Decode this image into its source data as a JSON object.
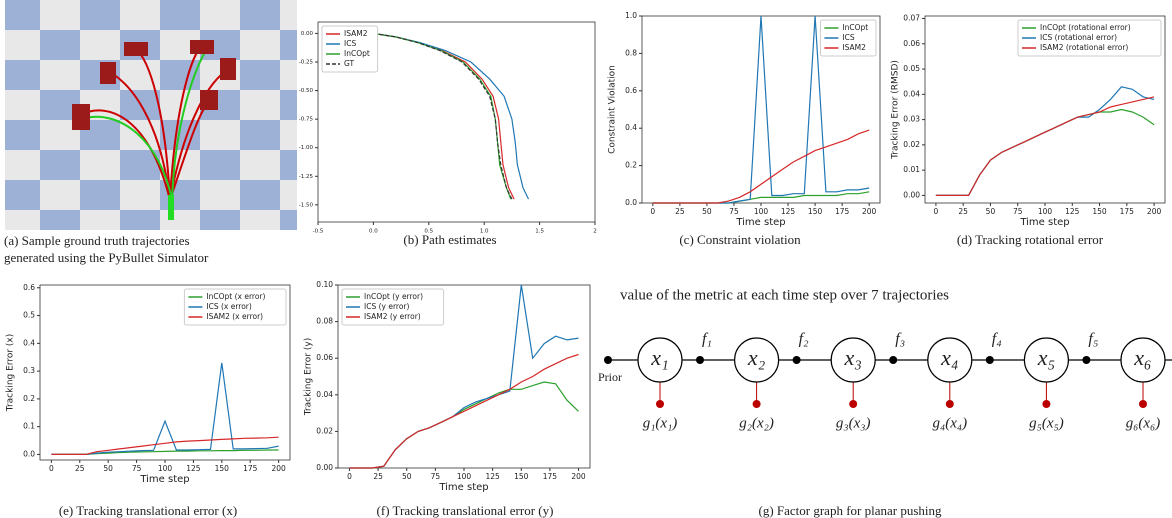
{
  "panel_a": {
    "caption": [
      "(a) Sample ground truth trajectories",
      "generated using the PyBullet Simulator"
    ]
  },
  "chart_data": [
    {
      "type": "line",
      "caption": "(b) Path estimates",
      "legend": "upper left",
      "xlim": [
        -0.5,
        2
      ],
      "xticks": [
        -0.5,
        {
          "value": 0,
          "label": "0.0"
        },
        0.5,
        {
          "value": 1,
          "label": "1.0"
        },
        1.5,
        2
      ],
      "ylim": [
        -1.65,
        0.1
      ],
      "yticks": [
        {
          "value": 0,
          "label": "0.00"
        },
        -0.25,
        {
          "value": -0.5,
          "label": "-0.50"
        },
        -0.75,
        {
          "value": -1,
          "label": "-1.00"
        },
        -1.25,
        {
          "value": -1.5,
          "label": "-1.50"
        }
      ],
      "series": [
        {
          "name": "ISAM2",
          "color": "#d62728",
          "x": [
            0,
            0.2,
            0.41,
            0.62,
            0.83,
            0.98,
            1.08,
            1.13,
            1.15,
            1.17,
            1.22,
            1.27
          ],
          "values": [
            0,
            -0.03,
            -0.08,
            -0.15,
            -0.25,
            -0.4,
            -0.55,
            -0.75,
            -0.95,
            -1.15,
            -1.35,
            -1.45
          ]
        },
        {
          "name": "ICS",
          "color": "#1f77b4",
          "x": [
            0,
            0.2,
            0.42,
            0.65,
            0.88,
            1.05,
            1.18,
            1.25,
            1.28,
            1.3,
            1.35,
            1.4
          ],
          "values": [
            0,
            -0.03,
            -0.08,
            -0.15,
            -0.25,
            -0.4,
            -0.55,
            -0.75,
            -0.95,
            -1.15,
            -1.35,
            -1.45
          ]
        },
        {
          "name": "InCOpt",
          "color": "#2ca02c",
          "x": [
            0,
            0.2,
            0.4,
            0.61,
            0.81,
            0.96,
            1.06,
            1.1,
            1.12,
            1.14,
            1.2,
            1.24
          ],
          "values": [
            0,
            -0.03,
            -0.08,
            -0.15,
            -0.25,
            -0.4,
            -0.55,
            -0.75,
            -0.95,
            -1.15,
            -1.35,
            -1.45
          ]
        },
        {
          "name": "GT",
          "color": "#333333",
          "style": "dashed",
          "x": [
            0,
            0.2,
            0.4,
            0.6,
            0.8,
            0.95,
            1.05,
            1.1,
            1.12,
            1.15,
            1.2,
            1.25
          ],
          "values": [
            0,
            -0.03,
            -0.08,
            -0.15,
            -0.25,
            -0.4,
            -0.55,
            -0.75,
            -0.95,
            -1.15,
            -1.35,
            -1.45
          ]
        }
      ]
    },
    {
      "type": "line",
      "caption": "(c) Constraint violation",
      "xlabel": "Time step",
      "ylabel": "Constraint Violation",
      "legend": "upper right",
      "xlim": [
        -10,
        210
      ],
      "xticks": [
        0,
        25,
        50,
        75,
        100,
        125,
        150,
        175,
        200
      ],
      "ylim": [
        0,
        1
      ],
      "yticks": [
        {
          "value": 0,
          "label": "0.0"
        },
        0.2,
        0.4,
        0.6,
        0.8,
        {
          "value": 1,
          "label": "1.0"
        }
      ],
      "x": [
        0,
        10,
        20,
        30,
        40,
        50,
        60,
        70,
        80,
        90,
        100,
        110,
        120,
        130,
        140,
        150,
        160,
        170,
        180,
        190,
        200
      ],
      "series": [
        {
          "name": "InCOpt",
          "color": "#2ca02c",
          "values": [
            0,
            0,
            0,
            0,
            0,
            0,
            0,
            0,
            0.01,
            0.02,
            0.03,
            0.03,
            0.03,
            0.03,
            0.04,
            0.04,
            0.04,
            0.04,
            0.05,
            0.05,
            0.06
          ]
        },
        {
          "name": "ICS",
          "color": "#1f77b4",
          "values": [
            0,
            0,
            0,
            0,
            0,
            0,
            0,
            0,
            0.01,
            0.02,
            1,
            0.04,
            0.04,
            0.05,
            0.05,
            1,
            0.06,
            0.06,
            0.07,
            0.07,
            0.08
          ]
        },
        {
          "name": "ISAM2",
          "color": "#d62728",
          "values": [
            0,
            0,
            0,
            0,
            0,
            0,
            0,
            0.01,
            0.03,
            0.06,
            0.1,
            0.14,
            0.18,
            0.22,
            0.25,
            0.28,
            0.3,
            0.32,
            0.34,
            0.37,
            0.39
          ]
        }
      ]
    },
    {
      "type": "line",
      "caption": "(d) Tracking rotational error",
      "xlabel": "Time step",
      "ylabel": "Tracking Error (RMSD)",
      "legend": "upper right",
      "xlim": [
        -10,
        210
      ],
      "xticks": [
        0,
        25,
        50,
        75,
        100,
        125,
        150,
        175,
        200
      ],
      "ylim": [
        -0.003,
        0.071
      ],
      "yticks": [
        {
          "value": 0,
          "label": "0.00"
        },
        0.01,
        0.02,
        0.03,
        0.04,
        0.05,
        0.06,
        0.07
      ],
      "x": [
        0,
        10,
        20,
        30,
        40,
        50,
        60,
        70,
        80,
        90,
        100,
        110,
        120,
        130,
        140,
        150,
        160,
        170,
        180,
        190,
        200
      ],
      "series": [
        {
          "name": "InCOpt (rotational error)",
          "color": "#2ca02c",
          "values": [
            0,
            0,
            0,
            0,
            0.008,
            0.014,
            0.017,
            0.019,
            0.021,
            0.023,
            0.025,
            0.027,
            0.029,
            0.031,
            0.032,
            0.033,
            0.033,
            0.034,
            0.033,
            0.031,
            0.028
          ]
        },
        {
          "name": "ICS (rotational error)",
          "color": "#1f77b4",
          "values": [
            0,
            0,
            0,
            0,
            0.008,
            0.014,
            0.017,
            0.019,
            0.021,
            0.023,
            0.025,
            0.027,
            0.029,
            0.031,
            0.031,
            0.034,
            0.038,
            0.043,
            0.042,
            0.039,
            0.038
          ]
        },
        {
          "name": "ISAM2 (rotational error)",
          "color": "#d62728",
          "values": [
            0,
            0,
            0,
            0,
            0.008,
            0.014,
            0.017,
            0.019,
            0.021,
            0.023,
            0.025,
            0.027,
            0.029,
            0.031,
            0.032,
            0.033,
            0.035,
            0.036,
            0.037,
            0.038,
            0.039
          ]
        }
      ]
    },
    {
      "type": "line",
      "caption": "(e) Tracking translational error (x)",
      "xlabel": "Time step",
      "ylabel": "Tracking Error (x)",
      "legend": "upper right",
      "xlim": [
        -10,
        210
      ],
      "xticks": [
        0,
        25,
        50,
        75,
        100,
        125,
        150,
        175,
        200
      ],
      "ylim": [
        -0.02,
        0.61
      ],
      "yticks": [
        {
          "value": 0,
          "label": "0.0"
        },
        0.1,
        0.2,
        0.3,
        0.4,
        0.5,
        0.6
      ],
      "x": [
        0,
        10,
        20,
        30,
        40,
        50,
        60,
        70,
        80,
        90,
        100,
        110,
        120,
        130,
        140,
        150,
        160,
        170,
        180,
        190,
        200
      ],
      "series": [
        {
          "name": "InCOpt (x error)",
          "color": "#2ca02c",
          "values": [
            0,
            0,
            0,
            0,
            0.003,
            0.005,
            0.007,
            0.008,
            0.009,
            0.01,
            0.011,
            0.012,
            0.012,
            0.013,
            0.013,
            0.014,
            0.014,
            0.015,
            0.015,
            0.016,
            0.016
          ]
        },
        {
          "name": "ICS (x error)",
          "color": "#1f77b4",
          "values": [
            0,
            0,
            0,
            0,
            0.005,
            0.008,
            0.01,
            0.012,
            0.014,
            0.015,
            0.12,
            0.016,
            0.016,
            0.017,
            0.018,
            0.33,
            0.02,
            0.02,
            0.021,
            0.022,
            0.03
          ]
        },
        {
          "name": "ISAM2 (x error)",
          "color": "#d62728",
          "values": [
            0,
            0,
            0,
            0,
            0.01,
            0.015,
            0.02,
            0.025,
            0.03,
            0.035,
            0.04,
            0.045,
            0.048,
            0.05,
            0.052,
            0.054,
            0.056,
            0.058,
            0.059,
            0.06,
            0.062
          ]
        }
      ]
    },
    {
      "type": "line",
      "caption": "(f) Tracking translational error (y)",
      "xlabel": "Time step",
      "ylabel": "Tracking Error (y)",
      "legend": "upper left",
      "xlim": [
        -10,
        210
      ],
      "xticks": [
        0,
        25,
        50,
        75,
        100,
        125,
        150,
        175,
        200
      ],
      "ylim": [
        0,
        0.1
      ],
      "yticks": [
        {
          "value": 0,
          "label": "0.00"
        },
        0.02,
        0.04,
        0.06,
        0.08,
        {
          "value": 0.1,
          "label": "0.10"
        }
      ],
      "x": [
        0,
        10,
        20,
        30,
        40,
        50,
        60,
        70,
        80,
        90,
        100,
        110,
        120,
        130,
        140,
        150,
        160,
        170,
        180,
        190,
        200
      ],
      "series": [
        {
          "name": "InCOpt (y error)",
          "color": "#2ca02c",
          "values": [
            0,
            0,
            0,
            0.001,
            0.01,
            0.016,
            0.02,
            0.022,
            0.025,
            0.028,
            0.032,
            0.035,
            0.038,
            0.041,
            0.043,
            0.043,
            0.045,
            0.047,
            0.046,
            0.037,
            0.031
          ]
        },
        {
          "name": "ICS (y error)",
          "color": "#1f77b4",
          "values": [
            0,
            0,
            0,
            0.001,
            0.01,
            0.016,
            0.02,
            0.022,
            0.025,
            0.028,
            0.033,
            0.036,
            0.038,
            0.04,
            0.042,
            0.1,
            0.06,
            0.068,
            0.072,
            0.07,
            0.071
          ]
        },
        {
          "name": "ISAM2 (y error)",
          "color": "#d62728",
          "values": [
            0,
            0,
            0,
            0.001,
            0.01,
            0.016,
            0.02,
            0.022,
            0.025,
            0.028,
            0.031,
            0.034,
            0.037,
            0.04,
            0.043,
            0.047,
            0.05,
            0.054,
            0.057,
            0.06,
            0.062
          ]
        }
      ]
    }
  ],
  "text": "value of the metric at each time step over 7 trajectories",
  "factor_graph": {
    "caption": "(g) Factor graph for planar pushing",
    "prior": "Prior",
    "nodes": [
      "x₁",
      "x₂",
      "x₃",
      "x₄",
      "x₅",
      "x₆"
    ],
    "factors": [
      "f₁",
      "f₂",
      "f₃",
      "f₄",
      "f₅"
    ],
    "unary": [
      "g₁(x₁)",
      "g₂(x₂)",
      "g₃(x₃)",
      "g₄(x₄)",
      "g₅(x₅)",
      "g₆(x₆)"
    ]
  }
}
